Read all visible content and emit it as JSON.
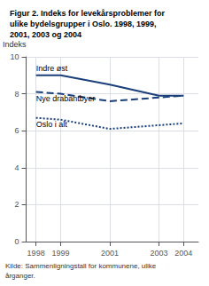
{
  "chart_data": {
    "type": "line",
    "title": "Figur 2. Indeks for levekårsproblemer for\nulike bydelsgrupper i Oslo. 1998, 1999,\n2001, 2003 og 2004",
    "ylabel": "Indeks",
    "annotations": [
      "Kilde: Sammenligningstall for kommunene, ulike\nårganger."
    ],
    "x": [
      1998,
      1999,
      2001,
      2003,
      2004
    ],
    "series": [
      {
        "name": "Indre øst",
        "color": "#1a3f7a",
        "line_style": "solid",
        "values": [
          9.0,
          9.0,
          8.5,
          7.9,
          7.9
        ]
      },
      {
        "name": "Nye drabantbyer",
        "color": "#1a3f7a",
        "line_style": "dashed",
        "values": [
          8.1,
          8.0,
          7.6,
          7.8,
          7.9
        ]
      },
      {
        "name": "Oslo i alt",
        "color": "#1a3f7a",
        "line_style": "dotted",
        "values": [
          6.7,
          6.6,
          6.1,
          6.3,
          6.4
        ]
      }
    ],
    "xlim": [
      1997.6,
      2004.6
    ],
    "xticks": [
      1998,
      1999,
      2001,
      2003,
      2004
    ],
    "ylim": [
      0,
      10
    ],
    "yticks": [
      0,
      2,
      4,
      6,
      8,
      10
    ],
    "grid": true
  }
}
